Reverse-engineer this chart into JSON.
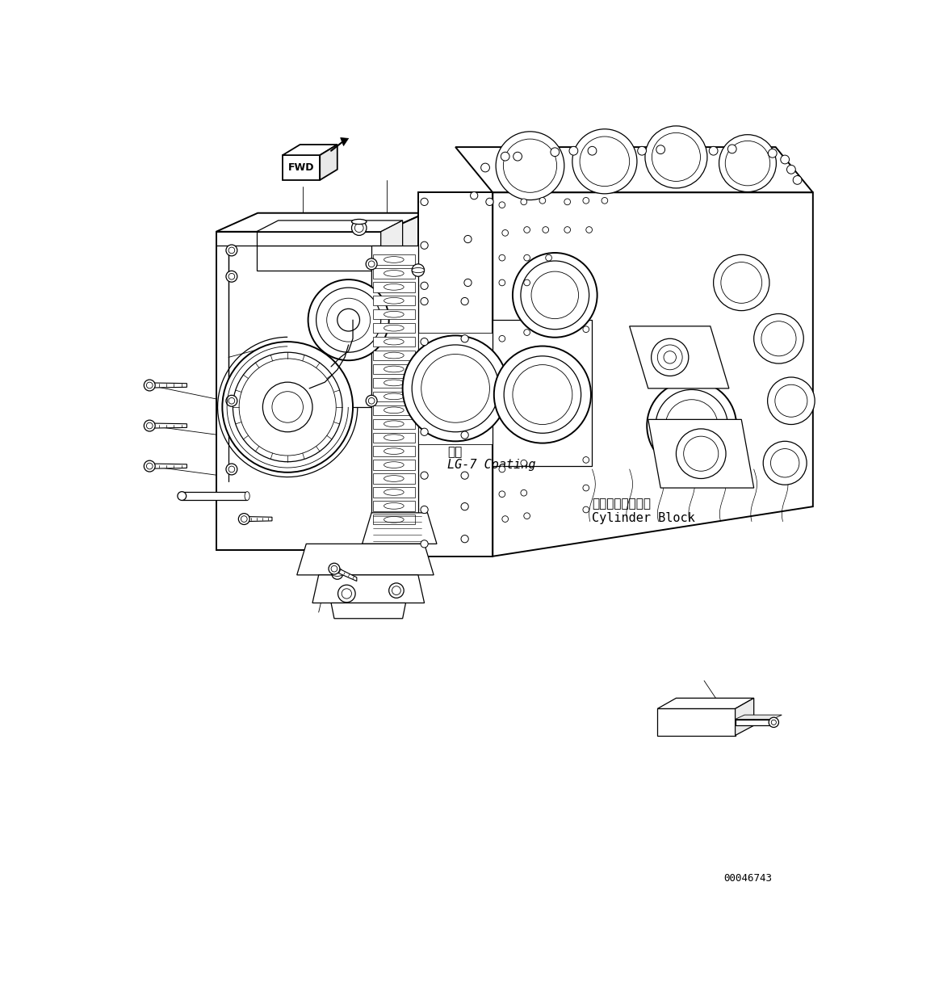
{
  "figure_width": 11.63,
  "figure_height": 12.48,
  "dpi": 100,
  "background_color": "#ffffff",
  "part_number": "00046743",
  "coating_label_jp": "塗布",
  "coating_label_en": "LG-7 Coating",
  "cylinder_block_jp": "シリンダブロック",
  "cylinder_block_en": "Cylinder Block",
  "line_color": "#000000",
  "lw_thick": 1.4,
  "lw_med": 0.9,
  "lw_thin": 0.6,
  "lw_vt": 0.4
}
